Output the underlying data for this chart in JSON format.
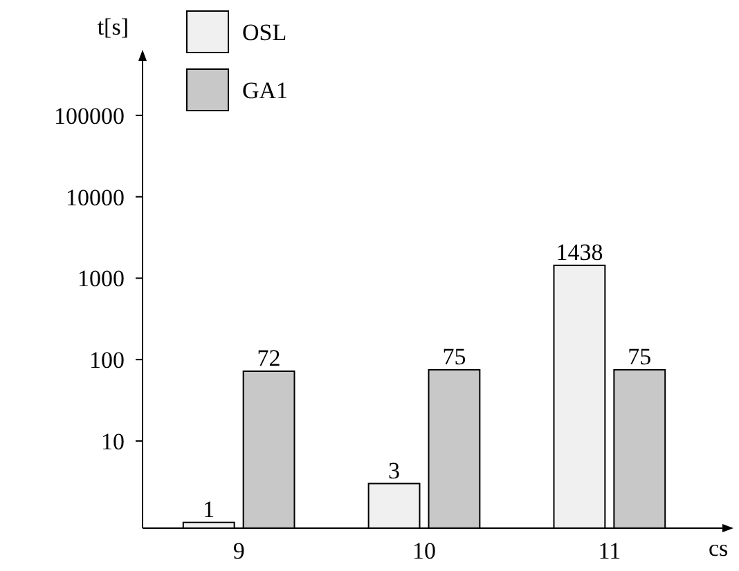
{
  "chart_data": {
    "type": "bar",
    "xlabel": "cs",
    "ylabel": "t[s]",
    "categories": [
      "9",
      "10",
      "11"
    ],
    "series": [
      {
        "name": "OSL",
        "color": "#f0f0f0",
        "values": [
          1,
          3,
          1438
        ]
      },
      {
        "name": "GA1",
        "color": "#c8c8c8",
        "values": [
          72,
          75,
          75
        ]
      }
    ],
    "log": true,
    "ylim": [
      0.85,
      400000
    ],
    "yticks": [
      10,
      100,
      1000,
      10000,
      100000
    ],
    "data_labels": true,
    "legend": "top left",
    "grid": false
  }
}
